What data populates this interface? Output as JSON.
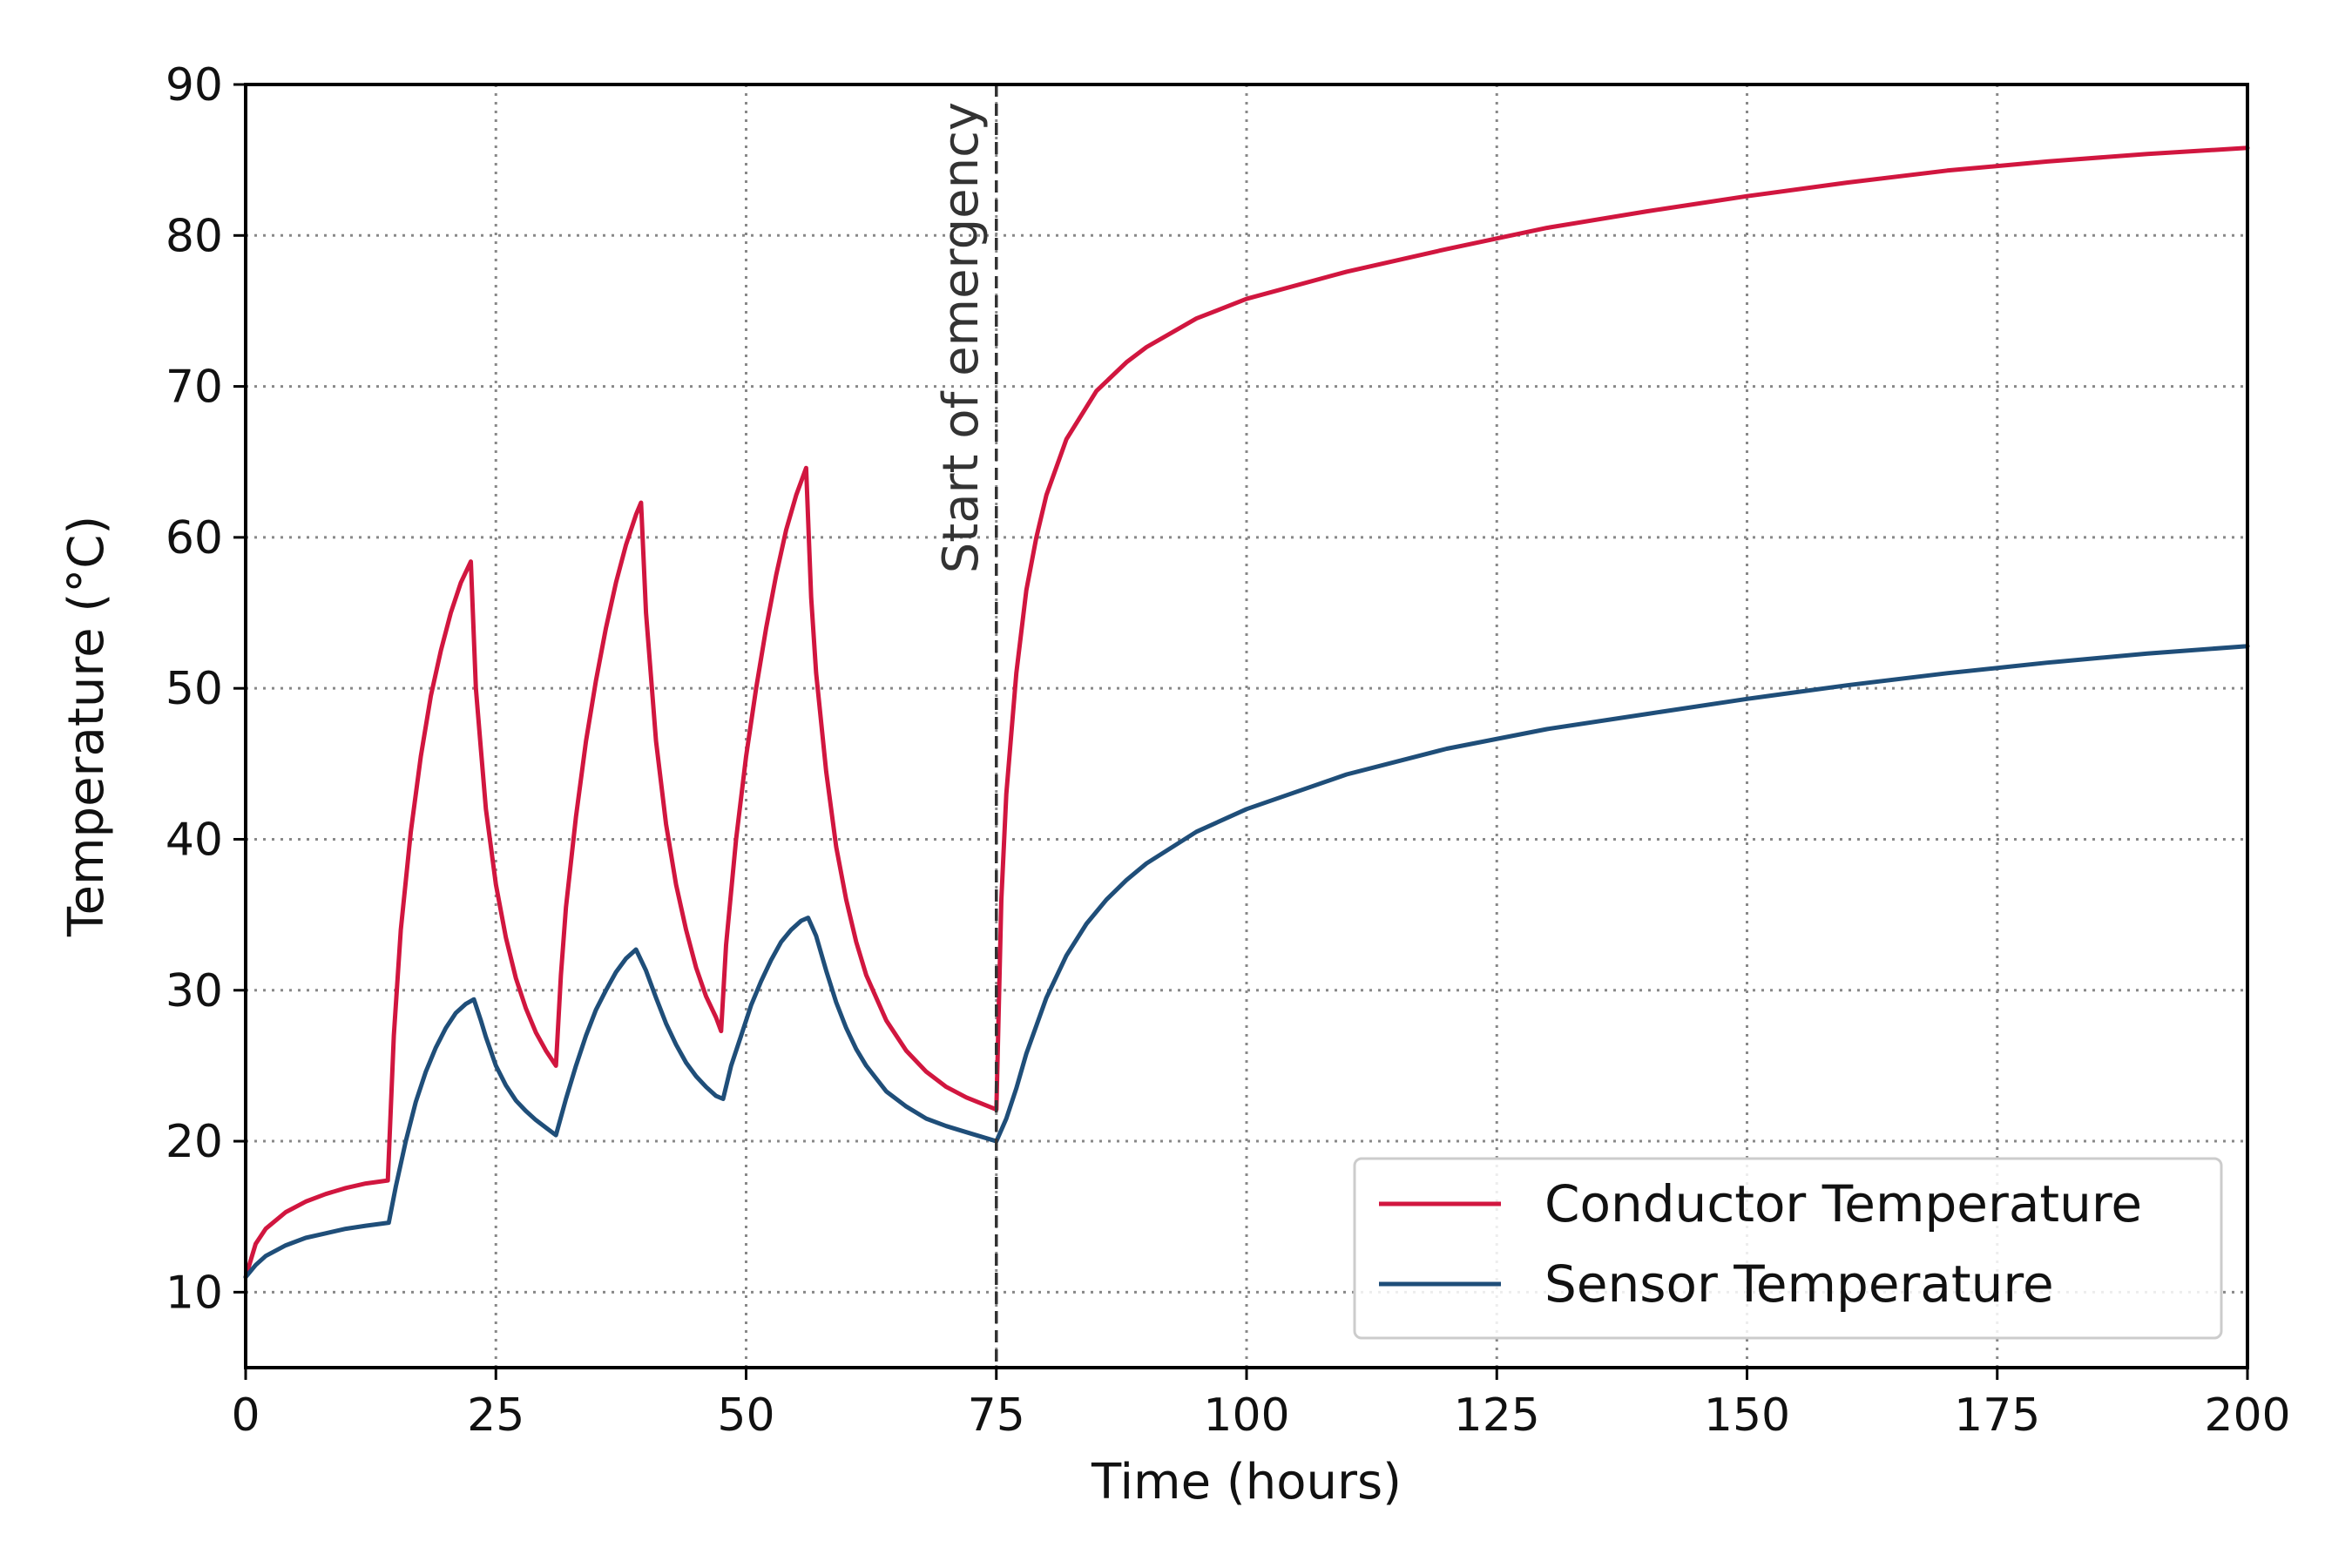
{
  "chart_data": {
    "type": "line",
    "title": "",
    "xlabel": "Time (hours)",
    "ylabel": "Temperature (°C)",
    "xlim": [
      0,
      200
    ],
    "ylim": [
      5,
      90
    ],
    "xticks": [
      0,
      25,
      50,
      75,
      100,
      125,
      150,
      175,
      200
    ],
    "yticks": [
      10,
      20,
      30,
      40,
      50,
      60,
      70,
      80,
      90
    ],
    "grid": true,
    "legend_position": "lower-right",
    "annotations": [
      {
        "type": "vline",
        "x": 75,
        "label": "Start of emergency",
        "style": "dashed"
      }
    ],
    "series": [
      {
        "name": "Conductor Temperature",
        "color": "#d1163f",
        "points": [
          [
            0,
            11
          ],
          [
            1,
            13.2
          ],
          [
            2,
            14.2
          ],
          [
            4,
            15.3
          ],
          [
            6,
            16
          ],
          [
            8,
            16.5
          ],
          [
            10,
            16.9
          ],
          [
            12,
            17.2
          ],
          [
            14.2,
            17.4
          ],
          [
            14.8,
            27
          ],
          [
            15.5,
            34
          ],
          [
            16.5,
            40.5
          ],
          [
            17.5,
            45.5
          ],
          [
            18.5,
            49.5
          ],
          [
            19.5,
            52.5
          ],
          [
            20.5,
            55
          ],
          [
            21.5,
            57
          ],
          [
            22.5,
            58.4
          ],
          [
            23,
            50
          ],
          [
            23.5,
            46
          ],
          [
            24,
            42
          ],
          [
            25,
            37
          ],
          [
            26,
            33.5
          ],
          [
            27,
            30.8
          ],
          [
            28,
            28.8
          ],
          [
            29,
            27.2
          ],
          [
            30,
            26
          ],
          [
            31,
            25
          ],
          [
            31.5,
            31
          ],
          [
            32,
            35.5
          ],
          [
            33,
            41.5
          ],
          [
            34,
            46.5
          ],
          [
            35,
            50.5
          ],
          [
            36,
            54
          ],
          [
            37,
            57
          ],
          [
            38,
            59.5
          ],
          [
            39,
            61.5
          ],
          [
            39.5,
            62.3
          ],
          [
            40,
            55
          ],
          [
            41,
            46.5
          ],
          [
            42,
            41
          ],
          [
            43,
            37
          ],
          [
            44,
            34
          ],
          [
            45,
            31.5
          ],
          [
            46,
            29.6
          ],
          [
            47,
            28.2
          ],
          [
            47.5,
            27.3
          ],
          [
            48,
            33
          ],
          [
            49,
            40
          ],
          [
            50,
            45.5
          ],
          [
            51,
            50
          ],
          [
            52,
            54
          ],
          [
            53,
            57.5
          ],
          [
            54,
            60.5
          ],
          [
            55,
            62.8
          ],
          [
            56,
            64.6
          ],
          [
            56.5,
            56
          ],
          [
            57,
            51
          ],
          [
            58,
            44.5
          ],
          [
            59,
            39.5
          ],
          [
            60,
            36
          ],
          [
            61,
            33.2
          ],
          [
            62,
            31
          ],
          [
            64,
            28
          ],
          [
            66,
            26
          ],
          [
            68,
            24.6
          ],
          [
            70,
            23.6
          ],
          [
            72,
            22.9
          ],
          [
            75,
            22.1
          ],
          [
            75.5,
            36
          ],
          [
            76,
            43
          ],
          [
            77,
            51
          ],
          [
            78,
            56.5
          ],
          [
            79,
            60
          ],
          [
            80,
            62.8
          ],
          [
            82,
            66.5
          ],
          [
            85,
            69.7
          ],
          [
            88,
            71.6
          ],
          [
            90,
            72.6
          ],
          [
            95,
            74.5
          ],
          [
            100,
            75.8
          ],
          [
            110,
            77.6
          ],
          [
            120,
            79.1
          ],
          [
            130,
            80.5
          ],
          [
            140,
            81.6
          ],
          [
            150,
            82.6
          ],
          [
            160,
            83.5
          ],
          [
            170,
            84.3
          ],
          [
            180,
            84.9
          ],
          [
            190,
            85.4
          ],
          [
            200,
            85.8
          ]
        ]
      },
      {
        "name": "Sensor Temperature",
        "color": "#1f4e79",
        "points": [
          [
            0,
            11
          ],
          [
            1,
            11.8
          ],
          [
            2,
            12.4
          ],
          [
            4,
            13.1
          ],
          [
            6,
            13.6
          ],
          [
            8,
            13.9
          ],
          [
            10,
            14.2
          ],
          [
            12,
            14.4
          ],
          [
            14.3,
            14.6
          ],
          [
            15,
            17
          ],
          [
            16,
            20
          ],
          [
            17,
            22.6
          ],
          [
            18,
            24.6
          ],
          [
            19,
            26.2
          ],
          [
            20,
            27.5
          ],
          [
            21,
            28.5
          ],
          [
            22,
            29.1
          ],
          [
            22.8,
            29.4
          ],
          [
            23.5,
            28
          ],
          [
            24,
            26.9
          ],
          [
            25,
            25
          ],
          [
            26,
            23.7
          ],
          [
            27,
            22.7
          ],
          [
            28,
            22
          ],
          [
            29,
            21.4
          ],
          [
            30,
            20.9
          ],
          [
            31,
            20.4
          ],
          [
            32,
            22.8
          ],
          [
            33,
            25
          ],
          [
            34,
            27
          ],
          [
            35,
            28.7
          ],
          [
            36,
            30
          ],
          [
            37,
            31.2
          ],
          [
            38,
            32.1
          ],
          [
            39,
            32.7
          ],
          [
            40,
            31.3
          ],
          [
            41,
            29.5
          ],
          [
            42,
            27.8
          ],
          [
            43,
            26.4
          ],
          [
            44,
            25.2
          ],
          [
            45,
            24.3
          ],
          [
            46,
            23.6
          ],
          [
            47,
            23
          ],
          [
            47.7,
            22.8
          ],
          [
            48.5,
            25
          ],
          [
            49.5,
            27
          ],
          [
            50.5,
            29
          ],
          [
            51.5,
            30.6
          ],
          [
            52.5,
            32
          ],
          [
            53.5,
            33.2
          ],
          [
            54.5,
            34
          ],
          [
            55.5,
            34.6
          ],
          [
            56.2,
            34.8
          ],
          [
            57,
            33.6
          ],
          [
            58,
            31.3
          ],
          [
            59,
            29.2
          ],
          [
            60,
            27.5
          ],
          [
            61,
            26.1
          ],
          [
            62,
            25
          ],
          [
            64,
            23.3
          ],
          [
            66,
            22.3
          ],
          [
            68,
            21.5
          ],
          [
            70,
            21
          ],
          [
            72,
            20.6
          ],
          [
            75,
            20
          ],
          [
            76,
            21.5
          ],
          [
            77,
            23.5
          ],
          [
            78,
            25.8
          ],
          [
            80,
            29.5
          ],
          [
            82,
            32.3
          ],
          [
            84,
            34.4
          ],
          [
            86,
            36
          ],
          [
            88,
            37.3
          ],
          [
            90,
            38.4
          ],
          [
            95,
            40.5
          ],
          [
            100,
            42
          ],
          [
            110,
            44.3
          ],
          [
            120,
            46
          ],
          [
            130,
            47.3
          ],
          [
            140,
            48.3
          ],
          [
            150,
            49.3
          ],
          [
            160,
            50.2
          ],
          [
            170,
            51
          ],
          [
            180,
            51.7
          ],
          [
            190,
            52.3
          ],
          [
            200,
            52.8
          ]
        ]
      }
    ]
  }
}
